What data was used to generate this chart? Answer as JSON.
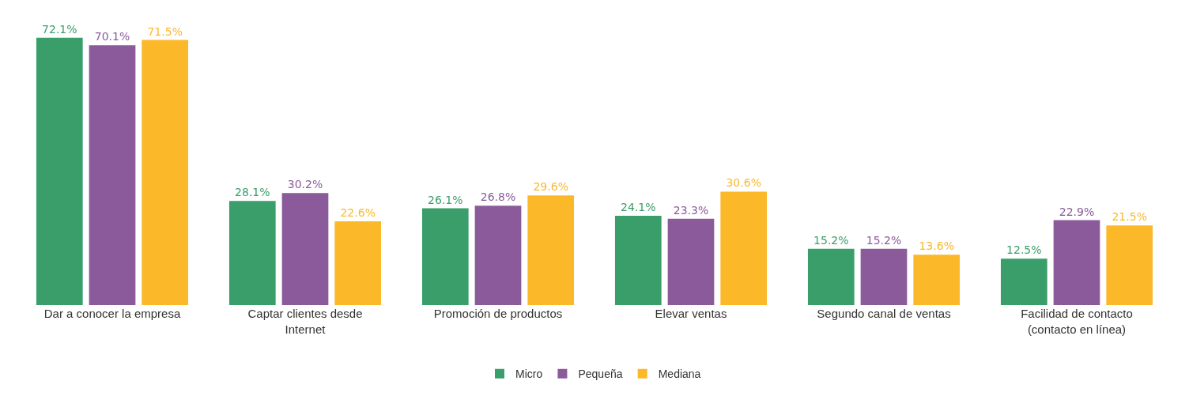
{
  "chart_data": {
    "type": "bar",
    "categories": [
      "Dar a conocer la empresa",
      "Captar clientes desde Internet",
      "Promoción de productos",
      "Elevar ventas",
      "Segundo canal de ventas",
      "Facilidad de contacto (contacto en línea)"
    ],
    "series": [
      {
        "name": "Micro",
        "color": "#3a9e6a",
        "values": [
          72.1,
          28.1,
          26.1,
          24.1,
          15.2,
          12.5
        ],
        "value_labels": [
          "72.1%",
          "28.1%",
          "26.1%",
          "24.1%",
          "15.2%",
          "12.5%"
        ]
      },
      {
        "name": "Pequeña",
        "color": "#8b5a9b",
        "values": [
          70.1,
          30.2,
          26.8,
          23.3,
          15.2,
          22.9
        ],
        "value_labels": [
          "70.1%",
          "30.2%",
          "26.8%",
          "23.3%",
          "15.2%",
          "22.9%"
        ]
      },
      {
        "name": "Mediana",
        "color": "#fbb829",
        "values": [
          71.5,
          22.6,
          29.6,
          30.6,
          13.6,
          21.5
        ],
        "value_labels": [
          "71.5%",
          "22.6%",
          "29.6%",
          "30.6%",
          "13.6%",
          "21.5%"
        ]
      }
    ],
    "legend": "bottom",
    "grid": false
  }
}
